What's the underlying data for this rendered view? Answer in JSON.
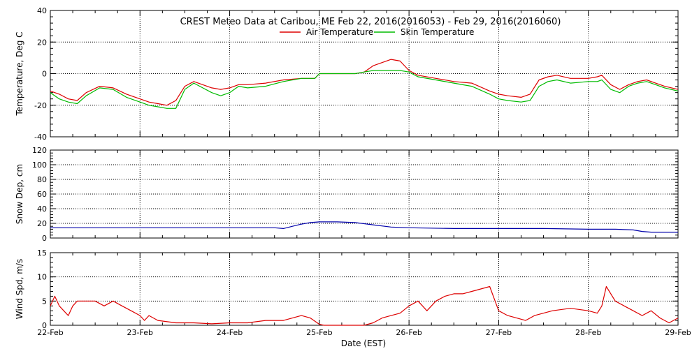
{
  "chart_data": {
    "type": "line",
    "title": "CREST Meteo Data at Caribou, ME   Feb 22, 2016(2016053) - Feb 29, 2016(2016060)",
    "xlabel": "Date (EST)",
    "x_ticks": [
      "22-Feb",
      "23-Feb",
      "24-Feb",
      "25-Feb",
      "26-Feb",
      "27-Feb",
      "28-Feb",
      "29-Feb"
    ],
    "xlim": [
      0,
      7
    ],
    "grid": true,
    "legend_placement": "top-center",
    "panels": [
      {
        "ylabel": "Temperature, Deg C",
        "ylim": [
          -40,
          40
        ],
        "y_ticks": [
          -40,
          -20,
          0,
          20,
          40
        ],
        "series": [
          {
            "name": "Air Temperature",
            "color": "#dd0000",
            "x": [
              0,
              0.1,
              0.2,
              0.3,
              0.4,
              0.55,
              0.7,
              0.85,
              1.0,
              1.1,
              1.2,
              1.3,
              1.4,
              1.5,
              1.6,
              1.8,
              1.9,
              2.0,
              2.1,
              2.2,
              2.4,
              2.6,
              2.8,
              2.95,
              3.0,
              3.2,
              3.4,
              3.5,
              3.6,
              3.8,
              3.9,
              4.0,
              4.1,
              4.3,
              4.5,
              4.7,
              4.9,
              5.0,
              5.1,
              5.25,
              5.35,
              5.45,
              5.55,
              5.65,
              5.8,
              6.0,
              6.1,
              6.15,
              6.25,
              6.35,
              6.45,
              6.55,
              6.65,
              6.75,
              6.85,
              7.0
            ],
            "y": [
              -11,
              -13,
              -16,
              -17,
              -12,
              -8,
              -9,
              -13,
              -16,
              -18,
              -19,
              -20,
              -17,
              -8,
              -5,
              -9,
              -10,
              -9,
              -7,
              -7,
              -6,
              -4,
              -3,
              -3,
              0,
              0,
              0,
              1,
              5,
              9,
              8,
              2,
              -1,
              -3,
              -5,
              -6,
              -11,
              -13,
              -14,
              -15,
              -13,
              -4,
              -2,
              -1,
              -3,
              -3,
              -2,
              -1,
              -7,
              -10,
              -7,
              -5,
              -4,
              -6,
              -8,
              -10
            ]
          },
          {
            "name": "Skin Temperature",
            "color": "#00bb00",
            "x": [
              0,
              0.1,
              0.2,
              0.3,
              0.4,
              0.55,
              0.7,
              0.85,
              1.0,
              1.1,
              1.2,
              1.3,
              1.4,
              1.5,
              1.6,
              1.8,
              1.9,
              2.0,
              2.1,
              2.2,
              2.4,
              2.6,
              2.8,
              2.95,
              3.0,
              3.2,
              3.4,
              3.5,
              3.6,
              3.8,
              3.9,
              4.0,
              4.1,
              4.3,
              4.5,
              4.7,
              4.9,
              5.0,
              5.1,
              5.25,
              5.35,
              5.45,
              5.55,
              5.65,
              5.8,
              6.0,
              6.1,
              6.15,
              6.25,
              6.35,
              6.45,
              6.55,
              6.65,
              6.75,
              6.85,
              7.0
            ],
            "y": [
              -12,
              -16,
              -18,
              -19,
              -14,
              -9,
              -10,
              -15,
              -18,
              -20,
              -21,
              -22,
              -22,
              -10,
              -6,
              -12,
              -14,
              -12,
              -8,
              -9,
              -8,
              -5,
              -3,
              -3,
              0,
              0,
              0,
              1,
              2,
              2,
              2,
              1,
              -2,
              -4,
              -6,
              -8,
              -13,
              -16,
              -17,
              -18,
              -17,
              -8,
              -5,
              -4,
              -6,
              -5,
              -5,
              -4,
              -10,
              -12,
              -8,
              -6,
              -5,
              -7,
              -9,
              -11
            ]
          }
        ]
      },
      {
        "ylabel": "Snow Dep, cm",
        "ylim": [
          0,
          120
        ],
        "y_ticks": [
          0,
          20,
          40,
          60,
          80,
          100,
          120
        ],
        "series": [
          {
            "name": "Snow Depth",
            "color": "#0000aa",
            "x": [
              0,
              0.5,
              1.0,
              1.5,
              2.0,
              2.5,
              2.6,
              2.7,
              2.8,
              2.9,
              3.0,
              3.2,
              3.4,
              3.6,
              3.8,
              4.0,
              4.5,
              5.0,
              5.5,
              6.0,
              6.3,
              6.5,
              6.6,
              6.7,
              6.8,
              7.0
            ],
            "y": [
              14,
              14,
              14,
              14,
              14,
              14,
              13,
              16,
              19,
              21,
              22,
              22,
              21,
              18,
              15,
              14,
              13,
              13,
              13,
              12,
              12,
              11,
              9,
              8,
              8,
              8
            ]
          }
        ]
      },
      {
        "ylabel": "Wind Spd, m/s",
        "ylim": [
          0,
          15
        ],
        "y_ticks": [
          0,
          5,
          10,
          15
        ],
        "series": [
          {
            "name": "Wind Speed",
            "color": "#dd0000",
            "x": [
              0,
              0.05,
              0.1,
              0.15,
              0.2,
              0.25,
              0.3,
              0.4,
              0.5,
              0.6,
              0.7,
              0.8,
              0.9,
              1.0,
              1.05,
              1.1,
              1.2,
              1.4,
              1.6,
              1.8,
              2.0,
              2.2,
              2.4,
              2.6,
              2.7,
              2.8,
              2.9,
              3.0,
              3.05,
              3.2,
              3.4,
              3.5,
              3.6,
              3.7,
              3.8,
              3.9,
              4.0,
              4.1,
              4.2,
              4.3,
              4.4,
              4.5,
              4.6,
              4.7,
              4.8,
              4.9,
              5.0,
              5.1,
              5.2,
              5.3,
              5.4,
              5.6,
              5.8,
              6.0,
              6.1,
              6.15,
              6.2,
              6.3,
              6.4,
              6.5,
              6.6,
              6.7,
              6.8,
              6.9,
              7.0
            ],
            "y": [
              4,
              6,
              4,
              3,
              2,
              4,
              5,
              5,
              5,
              4,
              5,
              4,
              3,
              2,
              1,
              2,
              1,
              0.5,
              0.5,
              0.3,
              0.5,
              0.5,
              1,
              1,
              1.5,
              2,
              1.5,
              0.2,
              0,
              0,
              0,
              0,
              0.5,
              1.5,
              2,
              2.5,
              4,
              5,
              3,
              5,
              6,
              6.5,
              6.5,
              7,
              7.5,
              8,
              3,
              2,
              1.5,
              1,
              2,
              3,
              3.5,
              3,
              2.5,
              4,
              8,
              5,
              4,
              3,
              2,
              3,
              1.5,
              0.5,
              1.5
            ]
          }
        ]
      }
    ]
  }
}
